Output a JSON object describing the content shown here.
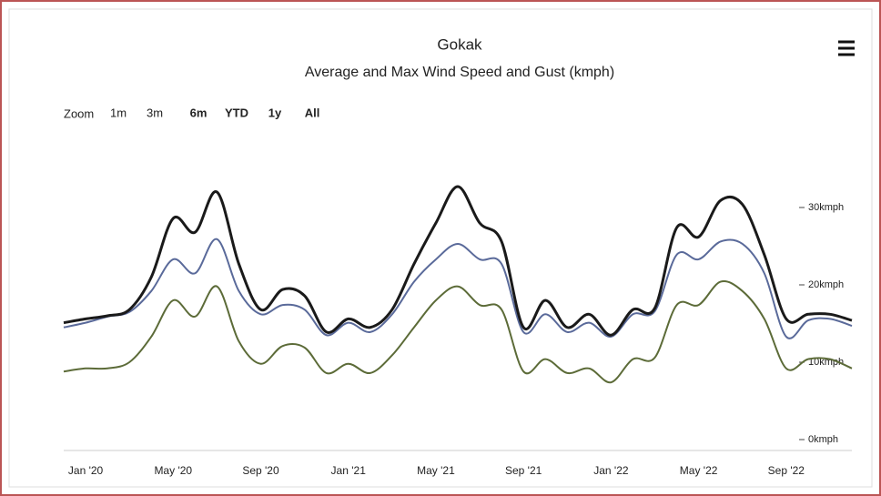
{
  "chart_data": {
    "type": "line",
    "title": "Gokak",
    "subtitle": "Average and Max Wind Speed and Gust (kmph)",
    "range_selector": {
      "label": "Zoom",
      "buttons": [
        "1m",
        "3m",
        "6m",
        "YTD",
        "1y",
        "All"
      ],
      "disabled": [
        "1m",
        "3m"
      ]
    },
    "categories": [
      null,
      "Jan '20",
      null,
      null,
      null,
      "May '20",
      null,
      null,
      null,
      "Sep '20",
      null,
      null,
      null,
      "Jan '21",
      null,
      null,
      null,
      "May '21",
      null,
      null,
      null,
      "Sep '21",
      null,
      null,
      null,
      "Jan '22",
      null,
      null,
      null,
      "May '22",
      null,
      null,
      null,
      "Sep '22",
      null,
      null,
      null
    ],
    "series": [
      {
        "color": "#1a1a1a",
        "values": [
          15.1,
          15.6,
          16,
          16.8,
          21,
          28.6,
          26.8,
          32,
          22.7,
          16.8,
          19.4,
          18.6,
          13.9,
          15.6,
          14.5,
          16.8,
          22.7,
          28,
          32.7,
          28,
          25.6,
          14.5,
          18,
          14.5,
          16.2,
          13.5,
          16.8,
          17,
          27.4,
          26.2,
          30.9,
          30.4,
          23.9,
          15.6,
          16.2,
          16.2,
          15.4
        ]
      },
      {
        "color": "#5a6a9a",
        "values": [
          14.5,
          15.1,
          15.9,
          16.5,
          19.2,
          23.3,
          21.5,
          25.9,
          19.2,
          16.2,
          17.4,
          16.8,
          13.5,
          15.1,
          13.9,
          16.2,
          20.4,
          23.3,
          25.3,
          23.3,
          22.7,
          13.9,
          16.2,
          13.9,
          15.1,
          13.3,
          16.2,
          16.6,
          23.9,
          23.3,
          25.6,
          25.3,
          21.5,
          13.3,
          15.4,
          15.6,
          14.7
        ]
      },
      {
        "color": "#5c6b38",
        "values": [
          8.8,
          9.2,
          9.2,
          10,
          13.3,
          18,
          15.9,
          19.8,
          12.7,
          9.8,
          12.1,
          11.9,
          8.6,
          9.8,
          8.6,
          10.9,
          14.5,
          18,
          19.8,
          17.4,
          16.8,
          8.8,
          10.4,
          8.6,
          9.2,
          7.4,
          10.4,
          10.6,
          17.4,
          17.4,
          20.4,
          19.2,
          15.6,
          9.2,
          10.4,
          10.4,
          9.2
        ]
      }
    ],
    "ylim": [
      0,
      35
    ],
    "yticks": [
      {
        "value": 0,
        "label": "0kmph"
      },
      {
        "value": 10,
        "label": "10kmph"
      },
      {
        "value": 20,
        "label": "20kmph"
      },
      {
        "value": 30,
        "label": "30kmph"
      }
    ],
    "grid": false
  }
}
